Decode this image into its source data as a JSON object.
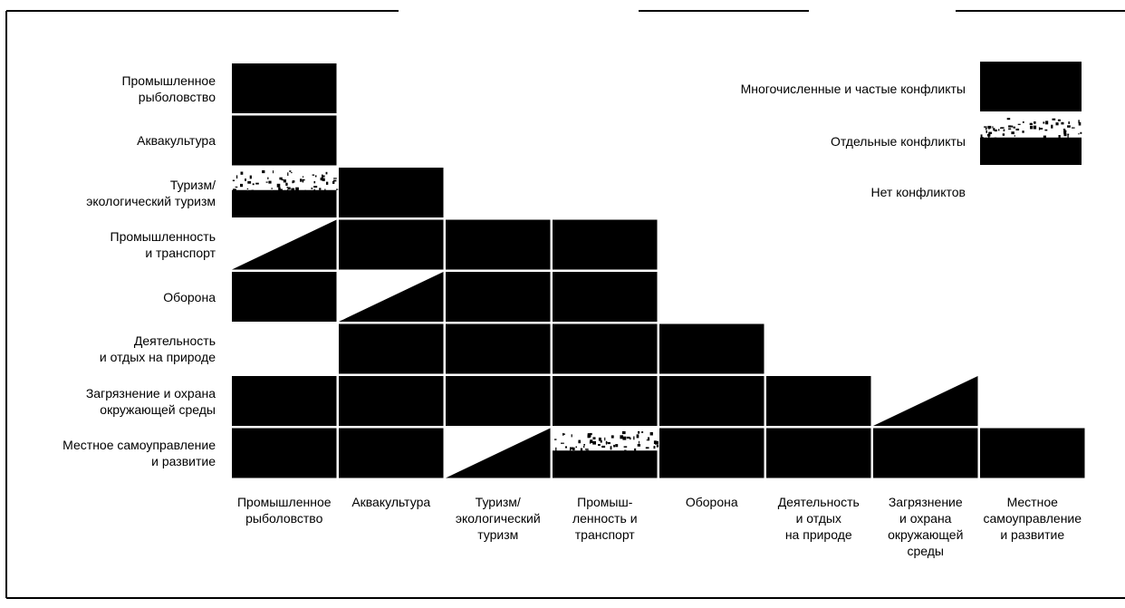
{
  "rows": [
    "Промышленное\nрыболовство",
    "Аквакультура",
    "Туризм/\nэкологический туризм",
    "Промышленность\nи транспорт",
    "Оборона",
    "Деятельность\nи отдых на природе",
    "Загрязнение и охрана\nокружающей среды",
    "Местное самоуправление\nи развитие"
  ],
  "columns": [
    "Промышленное\nрыболовство",
    "Аквакультура",
    "Туризм/\nэкологический\nтуризм",
    "Промыш-\nленность и\nтранспорт",
    "Оборона",
    "Деятельность\nи отдых\nна природе",
    "Загрязнение\nи охрана\nокружающей\nсреды",
    "Местное\nсамоуправление\nи развитие"
  ],
  "legend": [
    {
      "key": "many",
      "label": "Многочисленные и частые конфликты"
    },
    {
      "key": "some",
      "label": "Отдельные конфликты"
    },
    {
      "key": "none",
      "label": "Нет конфликтов"
    }
  ],
  "matrix": [
    [
      "many",
      null,
      null,
      null,
      null,
      null,
      null,
      null
    ],
    [
      "many",
      null,
      null,
      null,
      null,
      null,
      null,
      null
    ],
    [
      "some",
      "many",
      null,
      null,
      null,
      null,
      null,
      null
    ],
    [
      "partial",
      "many",
      "many",
      "many",
      null,
      null,
      null,
      null
    ],
    [
      "many",
      "partial",
      "many",
      "many",
      null,
      null,
      null,
      null
    ],
    [
      "none",
      "many",
      "many",
      "many",
      "many",
      null,
      null,
      null
    ],
    [
      "many",
      "many",
      "many",
      "many",
      "many",
      "many",
      "partial",
      null
    ],
    [
      "many",
      "many",
      "partial",
      "some",
      "many",
      "many",
      "many",
      "many"
    ]
  ],
  "colors": {
    "fill": "#000000",
    "background": "#ffffff"
  }
}
